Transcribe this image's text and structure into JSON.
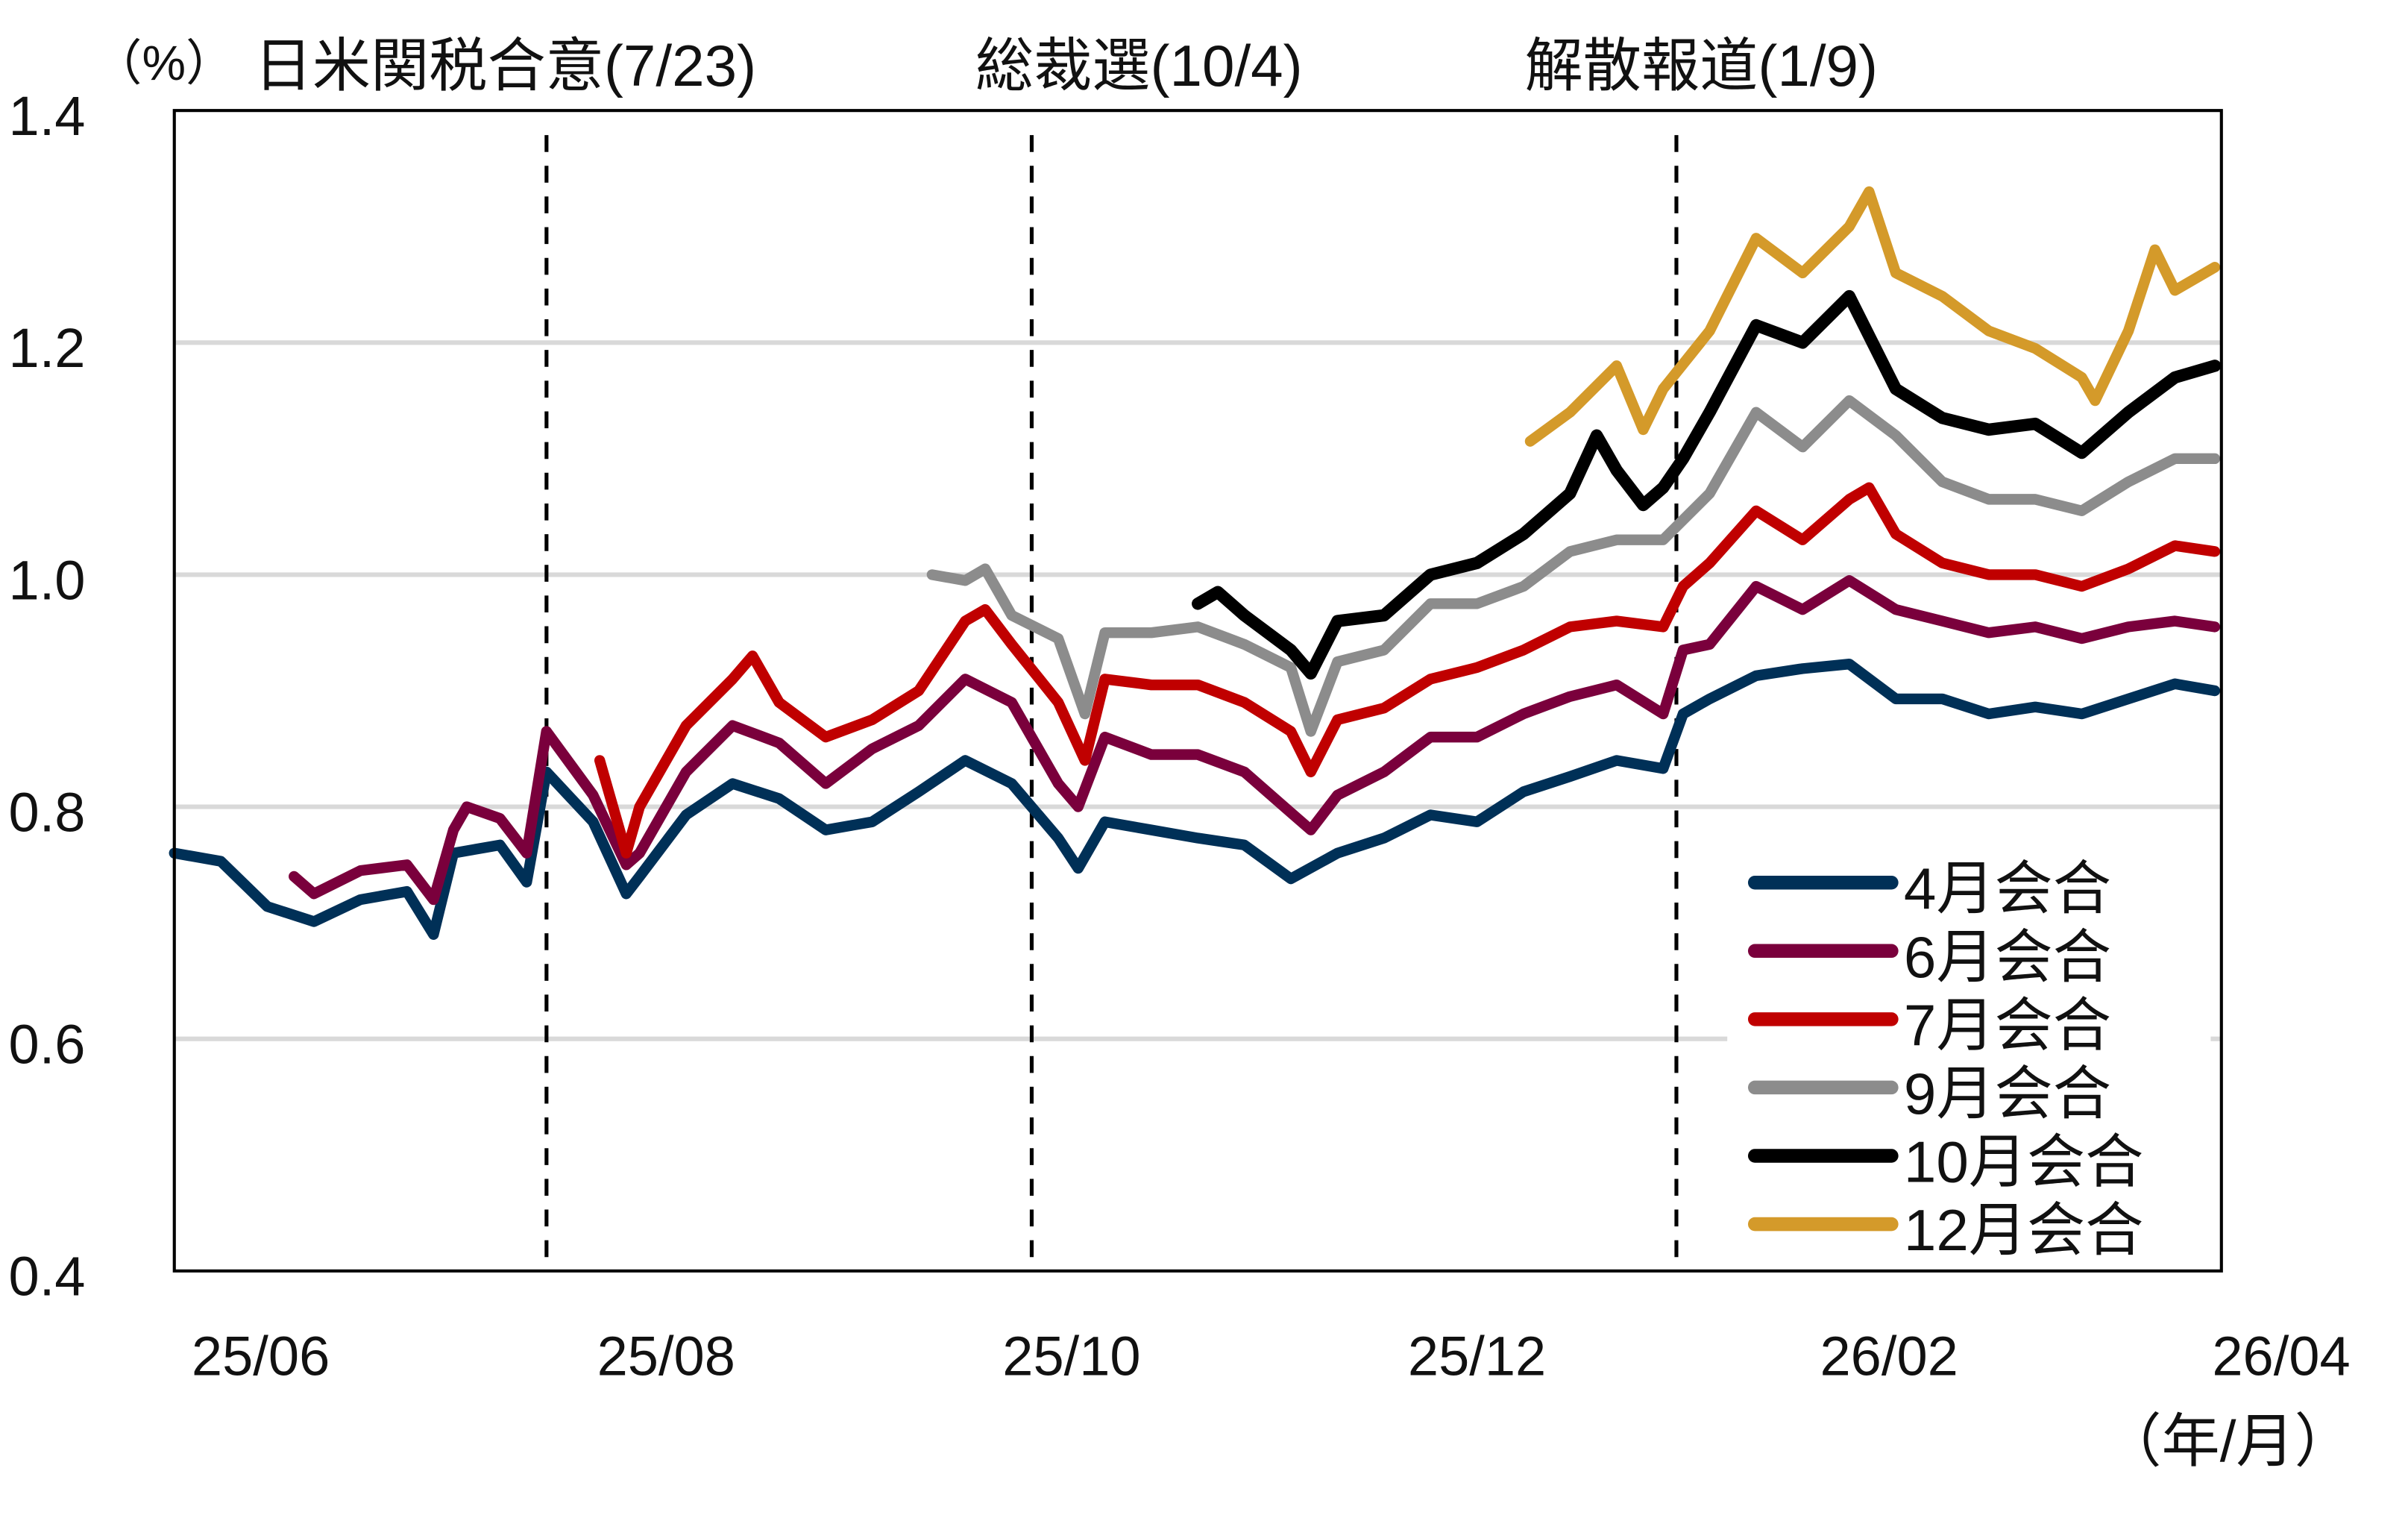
{
  "chart_data": {
    "type": "line",
    "title": "",
    "ylabel": "（%）",
    "xlabel": "（年/月）",
    "ylim": [
      0.4,
      1.4
    ],
    "yticks": [
      "0.4",
      "0.6",
      "0.8",
      "1.0",
      "1.2",
      "1.4"
    ],
    "xlim": [
      "2025-05-28",
      "2026-04-01"
    ],
    "xticks": [
      {
        "label": "25/06",
        "date": "2025-06-10"
      },
      {
        "label": "25/08",
        "date": "2025-08-10"
      },
      {
        "label": "25/10",
        "date": "2025-10-10"
      },
      {
        "label": "25/12",
        "date": "2025-12-10"
      },
      {
        "label": "26/02",
        "date": "2026-02-10"
      },
      {
        "label": "26/04",
        "date": "2026-04-10"
      }
    ],
    "grid": true,
    "legend_position": "bottom-right",
    "events": [
      {
        "label": "日米関税合意(7/23)",
        "date": "2025-07-23"
      },
      {
        "label": "総裁選(10/4)",
        "date": "2025-10-04"
      },
      {
        "label": "解散報道(1/9)",
        "date": "2026-01-09"
      }
    ],
    "series": [
      {
        "name": "4月会合",
        "color": "#003057",
        "points": [
          [
            "2025-05-28",
            0.76
          ],
          [
            "2025-06-04",
            0.753
          ],
          [
            "2025-06-11",
            0.714
          ],
          [
            "2025-06-18",
            0.701
          ],
          [
            "2025-06-25",
            0.72
          ],
          [
            "2025-07-02",
            0.727
          ],
          [
            "2025-07-06",
            0.69
          ],
          [
            "2025-07-09",
            0.76
          ],
          [
            "2025-07-16",
            0.767
          ],
          [
            "2025-07-20",
            0.735
          ],
          [
            "2025-07-23",
            0.83
          ],
          [
            "2025-07-30",
            0.787
          ],
          [
            "2025-08-04",
            0.725
          ],
          [
            "2025-08-06",
            0.74
          ],
          [
            "2025-08-13",
            0.793
          ],
          [
            "2025-08-20",
            0.82
          ],
          [
            "2025-08-27",
            0.807
          ],
          [
            "2025-09-03",
            0.78
          ],
          [
            "2025-09-10",
            0.787
          ],
          [
            "2025-09-17",
            0.813
          ],
          [
            "2025-09-24",
            0.84
          ],
          [
            "2025-10-01",
            0.82
          ],
          [
            "2025-10-08",
            0.773
          ],
          [
            "2025-10-11",
            0.747
          ],
          [
            "2025-10-15",
            0.787
          ],
          [
            "2025-10-22",
            0.78
          ],
          [
            "2025-10-29",
            0.773
          ],
          [
            "2025-11-05",
            0.767
          ],
          [
            "2025-11-12",
            0.738
          ],
          [
            "2025-11-19",
            0.76
          ],
          [
            "2025-11-26",
            0.773
          ],
          [
            "2025-12-03",
            0.793
          ],
          [
            "2025-12-10",
            0.787
          ],
          [
            "2025-12-17",
            0.813
          ],
          [
            "2025-12-24",
            0.826
          ],
          [
            "2025-12-31",
            0.84
          ],
          [
            "2026-01-07",
            0.833
          ],
          [
            "2026-01-10",
            0.88
          ],
          [
            "2026-01-14",
            0.893
          ],
          [
            "2026-01-21",
            0.913
          ],
          [
            "2026-01-28",
            0.919
          ],
          [
            "2026-02-04",
            0.923
          ],
          [
            "2026-02-11",
            0.893
          ],
          [
            "2026-02-18",
            0.893
          ],
          [
            "2026-02-25",
            0.88
          ],
          [
            "2026-03-04",
            0.886
          ],
          [
            "2026-03-11",
            0.88
          ],
          [
            "2026-03-18",
            0.893
          ],
          [
            "2026-03-25",
            0.906
          ],
          [
            "2026-03-31",
            0.9
          ]
        ]
      },
      {
        "name": "6月会合",
        "color": "#7a003c",
        "points": [
          [
            "2025-06-15",
            0.74
          ],
          [
            "2025-06-18",
            0.725
          ],
          [
            "2025-06-25",
            0.745
          ],
          [
            "2025-07-02",
            0.75
          ],
          [
            "2025-07-06",
            0.72
          ],
          [
            "2025-07-09",
            0.78
          ],
          [
            "2025-07-11",
            0.8
          ],
          [
            "2025-07-16",
            0.79
          ],
          [
            "2025-07-20",
            0.76
          ],
          [
            "2025-07-23",
            0.865
          ],
          [
            "2025-07-30",
            0.81
          ],
          [
            "2025-08-04",
            0.75
          ],
          [
            "2025-08-06",
            0.76
          ],
          [
            "2025-08-13",
            0.83
          ],
          [
            "2025-08-20",
            0.87
          ],
          [
            "2025-08-27",
            0.855
          ],
          [
            "2025-09-03",
            0.82
          ],
          [
            "2025-09-10",
            0.85
          ],
          [
            "2025-09-17",
            0.87
          ],
          [
            "2025-09-24",
            0.91
          ],
          [
            "2025-10-01",
            0.89
          ],
          [
            "2025-10-08",
            0.82
          ],
          [
            "2025-10-11",
            0.8
          ],
          [
            "2025-10-15",
            0.86
          ],
          [
            "2025-10-22",
            0.845
          ],
          [
            "2025-10-29",
            0.845
          ],
          [
            "2025-11-05",
            0.83
          ],
          [
            "2025-11-12",
            0.795
          ],
          [
            "2025-11-15",
            0.78
          ],
          [
            "2025-11-19",
            0.81
          ],
          [
            "2025-11-26",
            0.83
          ],
          [
            "2025-12-03",
            0.86
          ],
          [
            "2025-12-10",
            0.86
          ],
          [
            "2025-12-17",
            0.88
          ],
          [
            "2025-12-24",
            0.895
          ],
          [
            "2025-12-31",
            0.905
          ],
          [
            "2026-01-07",
            0.88
          ],
          [
            "2026-01-10",
            0.935
          ],
          [
            "2026-01-14",
            0.94
          ],
          [
            "2026-01-21",
            0.99
          ],
          [
            "2026-01-28",
            0.97
          ],
          [
            "2026-02-04",
            0.995
          ],
          [
            "2026-02-11",
            0.97
          ],
          [
            "2026-02-18",
            0.96
          ],
          [
            "2026-02-25",
            0.95
          ],
          [
            "2026-03-04",
            0.955
          ],
          [
            "2026-03-11",
            0.945
          ],
          [
            "2026-03-18",
            0.955
          ],
          [
            "2026-03-25",
            0.96
          ],
          [
            "2026-03-31",
            0.955
          ]
        ]
      },
      {
        "name": "7月会合",
        "color": "#c00000",
        "points": [
          [
            "2025-07-31",
            0.84
          ],
          [
            "2025-08-04",
            0.76
          ],
          [
            "2025-08-06",
            0.8
          ],
          [
            "2025-08-13",
            0.87
          ],
          [
            "2025-08-20",
            0.91
          ],
          [
            "2025-08-23",
            0.93
          ],
          [
            "2025-08-27",
            0.89
          ],
          [
            "2025-09-03",
            0.86
          ],
          [
            "2025-09-10",
            0.875
          ],
          [
            "2025-09-17",
            0.9
          ],
          [
            "2025-09-24",
            0.96
          ],
          [
            "2025-09-27",
            0.97
          ],
          [
            "2025-10-01",
            0.94
          ],
          [
            "2025-10-08",
            0.89
          ],
          [
            "2025-10-12",
            0.84
          ],
          [
            "2025-10-15",
            0.91
          ],
          [
            "2025-10-22",
            0.905
          ],
          [
            "2025-10-29",
            0.905
          ],
          [
            "2025-11-05",
            0.89
          ],
          [
            "2025-11-12",
            0.865
          ],
          [
            "2025-11-15",
            0.83
          ],
          [
            "2025-11-19",
            0.875
          ],
          [
            "2025-11-26",
            0.885
          ],
          [
            "2025-12-03",
            0.91
          ],
          [
            "2025-12-10",
            0.92
          ],
          [
            "2025-12-17",
            0.935
          ],
          [
            "2025-12-24",
            0.955
          ],
          [
            "2025-12-31",
            0.96
          ],
          [
            "2026-01-07",
            0.955
          ],
          [
            "2026-01-10",
            0.99
          ],
          [
            "2026-01-14",
            1.01
          ],
          [
            "2026-01-21",
            1.055
          ],
          [
            "2026-01-28",
            1.03
          ],
          [
            "2026-02-04",
            1.065
          ],
          [
            "2026-02-07",
            1.075
          ],
          [
            "2026-02-11",
            1.035
          ],
          [
            "2026-02-18",
            1.01
          ],
          [
            "2026-02-25",
            1.0
          ],
          [
            "2026-03-04",
            1.0
          ],
          [
            "2026-03-11",
            0.99
          ],
          [
            "2026-03-18",
            1.005
          ],
          [
            "2026-03-25",
            1.025
          ],
          [
            "2026-03-31",
            1.02
          ]
        ]
      },
      {
        "name": "9月会合",
        "color": "#8c8c8c",
        "points": [
          [
            "2025-09-19",
            1.0
          ],
          [
            "2025-09-24",
            0.995
          ],
          [
            "2025-09-27",
            1.005
          ],
          [
            "2025-10-01",
            0.965
          ],
          [
            "2025-10-08",
            0.945
          ],
          [
            "2025-10-12",
            0.88
          ],
          [
            "2025-10-15",
            0.95
          ],
          [
            "2025-10-22",
            0.95
          ],
          [
            "2025-10-29",
            0.955
          ],
          [
            "2025-11-05",
            0.94
          ],
          [
            "2025-11-12",
            0.92
          ],
          [
            "2025-11-15",
            0.865
          ],
          [
            "2025-11-19",
            0.925
          ],
          [
            "2025-11-26",
            0.935
          ],
          [
            "2025-12-03",
            0.975
          ],
          [
            "2025-12-10",
            0.975
          ],
          [
            "2025-12-17",
            0.99
          ],
          [
            "2025-12-24",
            1.02
          ],
          [
            "2025-12-31",
            1.03
          ],
          [
            "2026-01-07",
            1.03
          ],
          [
            "2026-01-14",
            1.07
          ],
          [
            "2026-01-21",
            1.14
          ],
          [
            "2026-01-28",
            1.11
          ],
          [
            "2026-02-04",
            1.15
          ],
          [
            "2026-02-11",
            1.12
          ],
          [
            "2026-02-18",
            1.08
          ],
          [
            "2026-02-25",
            1.065
          ],
          [
            "2026-03-04",
            1.065
          ],
          [
            "2026-03-11",
            1.055
          ],
          [
            "2026-03-18",
            1.08
          ],
          [
            "2026-03-25",
            1.1
          ],
          [
            "2026-03-31",
            1.1
          ]
        ]
      },
      {
        "name": "10月会合",
        "color": "#000000",
        "points": [
          [
            "2025-10-29",
            0.975
          ],
          [
            "2025-11-01",
            0.985
          ],
          [
            "2025-11-05",
            0.965
          ],
          [
            "2025-11-12",
            0.935
          ],
          [
            "2025-11-15",
            0.915
          ],
          [
            "2025-11-19",
            0.96
          ],
          [
            "2025-11-26",
            0.965
          ],
          [
            "2025-12-03",
            1.0
          ],
          [
            "2025-12-10",
            1.01
          ],
          [
            "2025-12-17",
            1.035
          ],
          [
            "2025-12-24",
            1.07
          ],
          [
            "2025-12-28",
            1.12
          ],
          [
            "2025-12-31",
            1.09
          ],
          [
            "2026-01-04",
            1.06
          ],
          [
            "2026-01-07",
            1.075
          ],
          [
            "2026-01-10",
            1.1
          ],
          [
            "2026-01-14",
            1.14
          ],
          [
            "2026-01-21",
            1.215
          ],
          [
            "2026-01-28",
            1.2
          ],
          [
            "2026-02-04",
            1.24
          ],
          [
            "2026-02-11",
            1.16
          ],
          [
            "2026-02-18",
            1.135
          ],
          [
            "2026-02-25",
            1.125
          ],
          [
            "2026-03-04",
            1.13
          ],
          [
            "2026-03-11",
            1.105
          ],
          [
            "2026-03-18",
            1.14
          ],
          [
            "2026-03-25",
            1.17
          ],
          [
            "2026-03-31",
            1.18
          ]
        ]
      },
      {
        "name": "12月会合",
        "color": "#d49a2a",
        "points": [
          [
            "2025-12-18",
            1.115
          ],
          [
            "2025-12-24",
            1.14
          ],
          [
            "2025-12-31",
            1.18
          ],
          [
            "2026-01-04",
            1.125
          ],
          [
            "2026-01-07",
            1.16
          ],
          [
            "2026-01-14",
            1.21
          ],
          [
            "2026-01-21",
            1.29
          ],
          [
            "2026-01-28",
            1.26
          ],
          [
            "2026-02-04",
            1.3
          ],
          [
            "2026-02-07",
            1.33
          ],
          [
            "2026-02-11",
            1.26
          ],
          [
            "2026-02-18",
            1.24
          ],
          [
            "2026-02-25",
            1.21
          ],
          [
            "2026-03-04",
            1.195
          ],
          [
            "2026-03-11",
            1.17
          ],
          [
            "2026-03-13",
            1.15
          ],
          [
            "2026-03-18",
            1.21
          ],
          [
            "2026-03-22",
            1.28
          ],
          [
            "2026-03-25",
            1.245
          ],
          [
            "2026-03-31",
            1.265
          ]
        ]
      }
    ]
  }
}
